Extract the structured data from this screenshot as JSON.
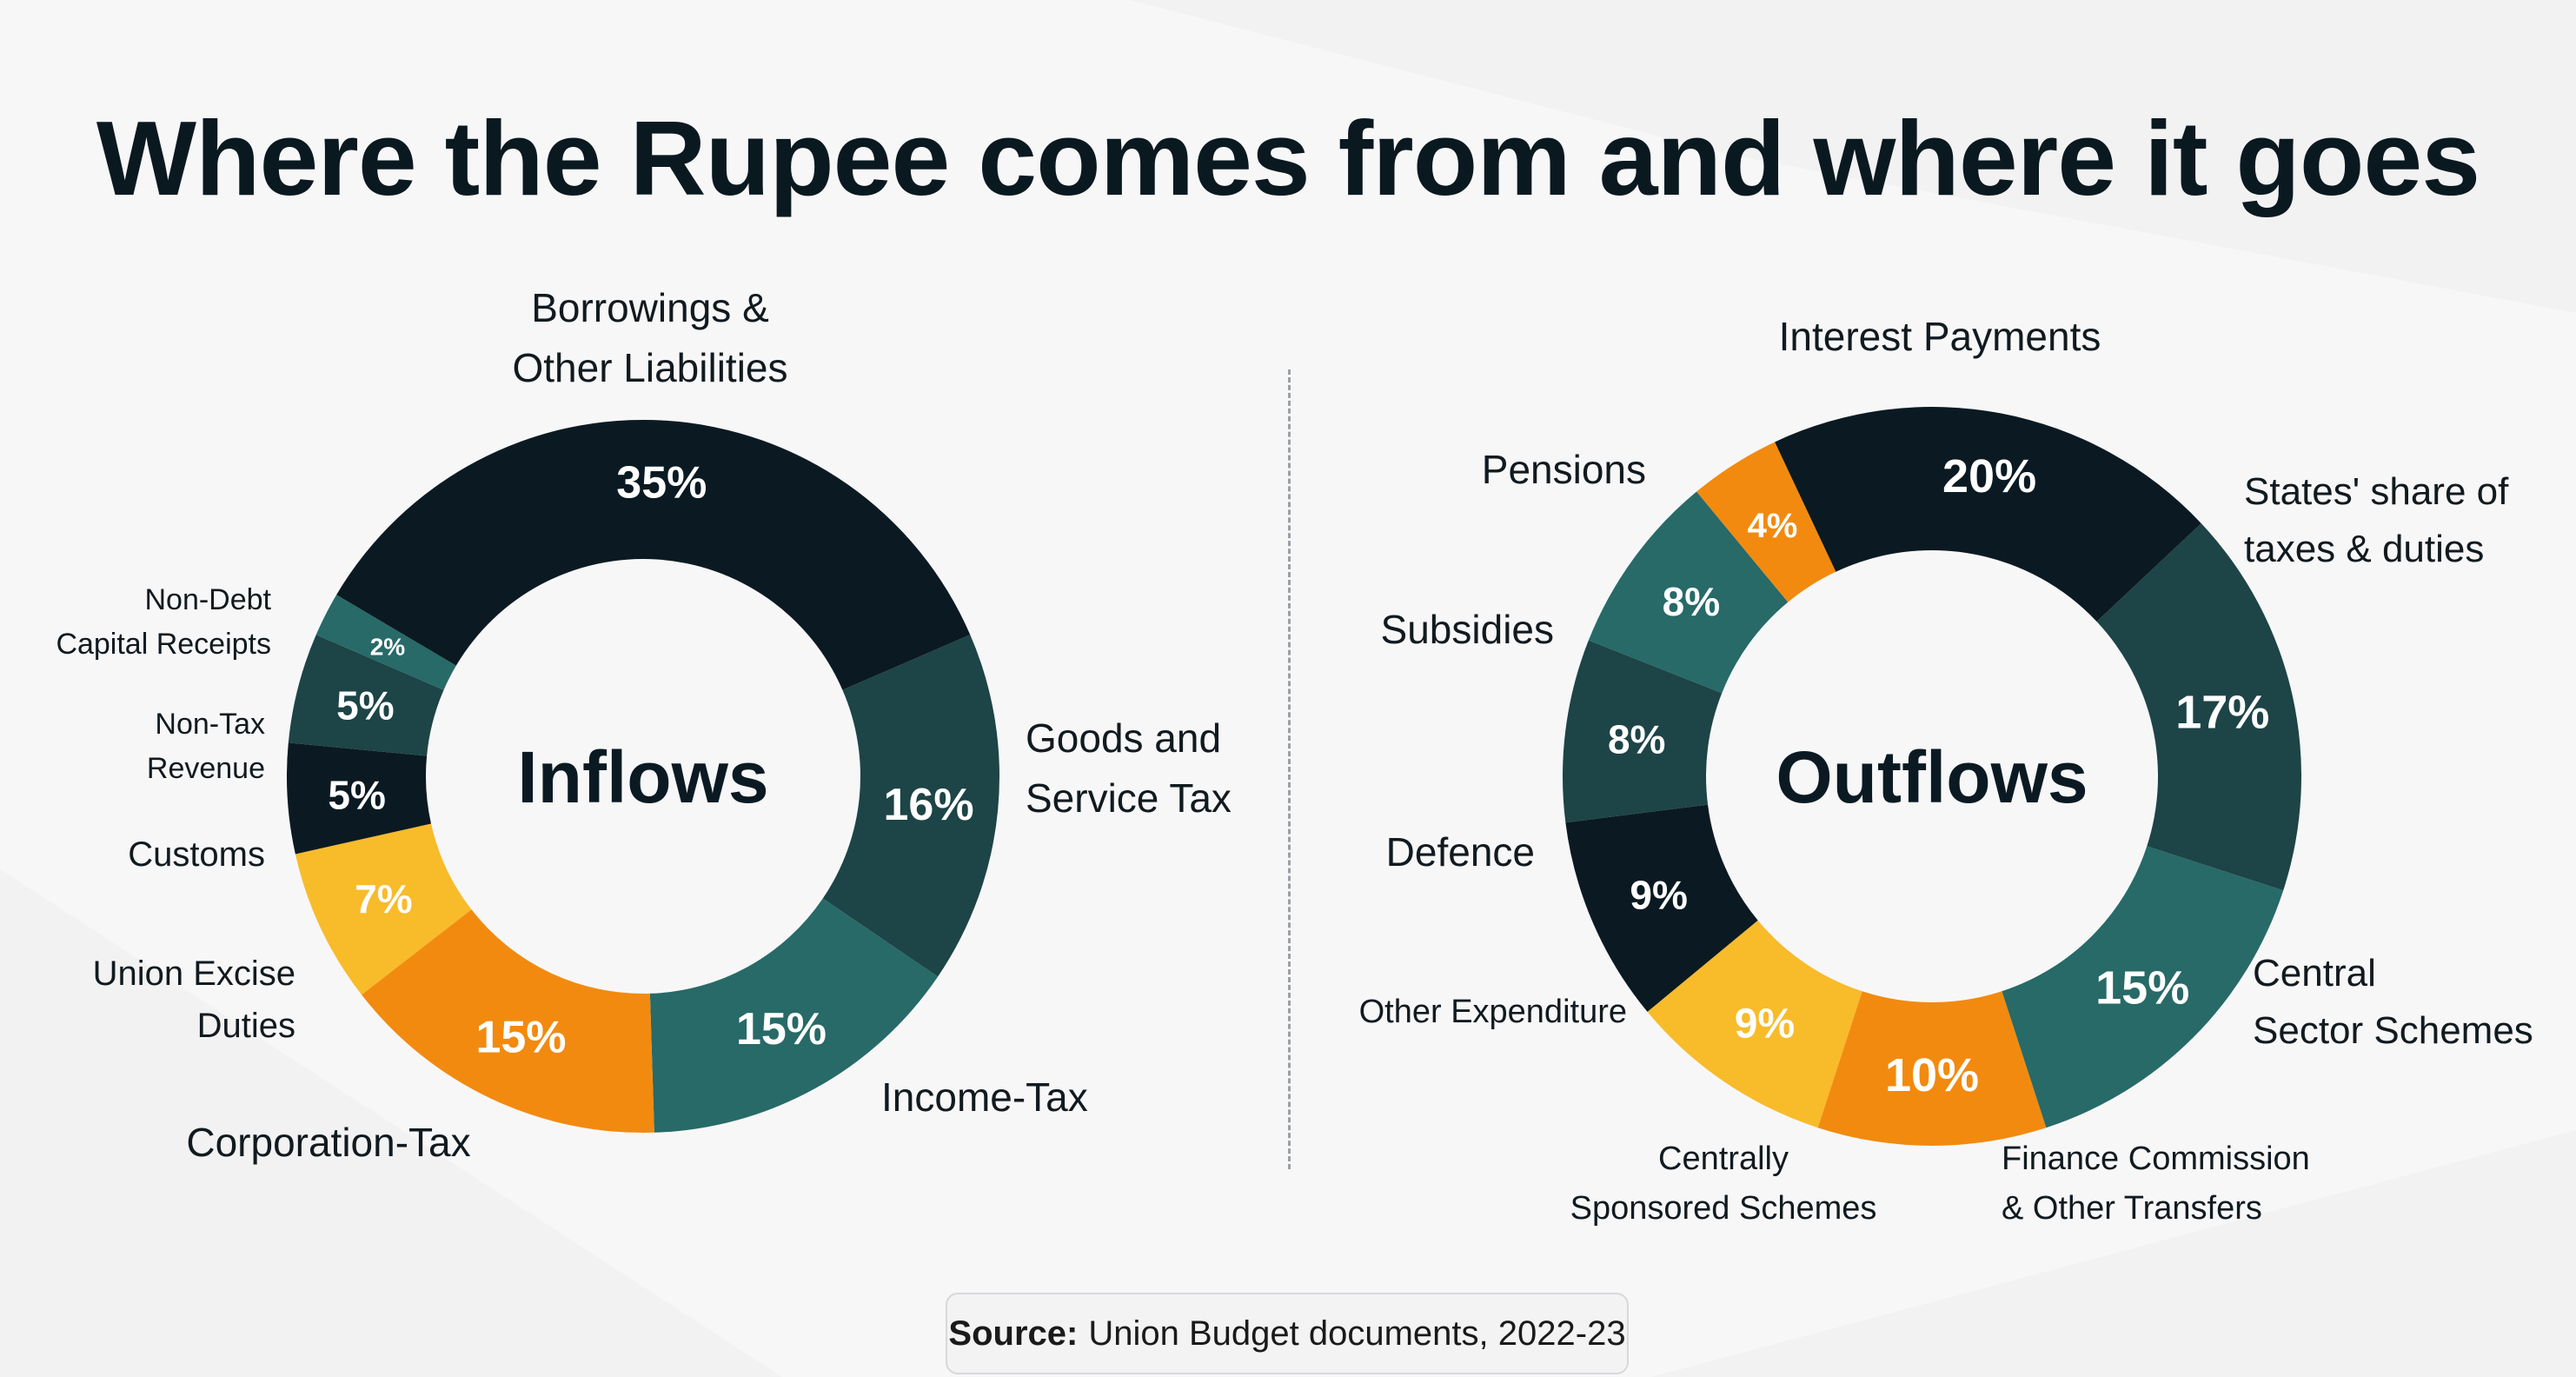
{
  "title": "Where the Rupee comes from and where it goes",
  "source": {
    "label": "Source:",
    "text": "Union Budget documents, 2022-23"
  },
  "colors": {
    "dark": "#0b1a22",
    "deep_teal": "#1d4446",
    "teal": "#276a68",
    "orange": "#f28a0f",
    "yellow": "#f8bb2a",
    "ring_teal_light": "#24706c"
  },
  "chart_data": [
    {
      "type": "pie",
      "variant": "donut",
      "center_label": "Inflows",
      "slices": [
        {
          "label_lines": [
            "Borrowings &",
            "Other Liabilities"
          ],
          "value": 35,
          "value_label": "35%",
          "color": "#0b1a22"
        },
        {
          "label_lines": [
            "Goods and",
            "Service Tax"
          ],
          "value": 16,
          "value_label": "16%",
          "color": "#1d4446"
        },
        {
          "label_lines": [
            "Income-Tax"
          ],
          "value": 15,
          "value_label": "15%",
          "color": "#276a68"
        },
        {
          "label_lines": [
            "Corporation-Tax"
          ],
          "value": 15,
          "value_label": "15%",
          "color": "#f28a0f"
        },
        {
          "label_lines": [
            "Union Excise",
            "Duties"
          ],
          "value": 7,
          "value_label": "7%",
          "color": "#f8bb2a"
        },
        {
          "label_lines": [
            "Customs"
          ],
          "value": 5,
          "value_label": "5%",
          "color": "#0b1a22"
        },
        {
          "label_lines": [
            "Non-Tax",
            "Revenue"
          ],
          "value": 5,
          "value_label": "5%",
          "color": "#1d4446"
        },
        {
          "label_lines": [
            "Non-Debt",
            "Capital Receipts"
          ],
          "value": 2,
          "value_label": "2%",
          "color": "#276a68"
        }
      ]
    },
    {
      "type": "pie",
      "variant": "donut",
      "center_label": "Outflows",
      "slices": [
        {
          "label_lines": [
            "Interest Payments"
          ],
          "value": 20,
          "value_label": "20%",
          "color": "#0b1a22"
        },
        {
          "label_lines": [
            "States' share of",
            "taxes & duties"
          ],
          "value": 17,
          "value_label": "17%",
          "color": "#1d4446"
        },
        {
          "label_lines": [
            "Central",
            "Sector Schemes"
          ],
          "value": 15,
          "value_label": "15%",
          "color": "#276a68"
        },
        {
          "label_lines": [
            "Finance Commission",
            "& Other Transfers"
          ],
          "value": 10,
          "value_label": "10%",
          "color": "#f28a0f"
        },
        {
          "label_lines": [
            "Centrally",
            "Sponsored Schemes"
          ],
          "value": 9,
          "value_label": "9%",
          "color": "#f8bb2a"
        },
        {
          "label_lines": [
            "Other Expenditure"
          ],
          "value": 9,
          "value_label": "9%",
          "color": "#0b1a22"
        },
        {
          "label_lines": [
            "Defence"
          ],
          "value": 8,
          "value_label": "8%",
          "color": "#1d4446"
        },
        {
          "label_lines": [
            "Subsidies"
          ],
          "value": 8,
          "value_label": "8%",
          "color": "#276a68"
        },
        {
          "label_lines": [
            "Pensions"
          ],
          "value": 4,
          "value_label": "4%",
          "color": "#f28a0f"
        }
      ]
    }
  ]
}
